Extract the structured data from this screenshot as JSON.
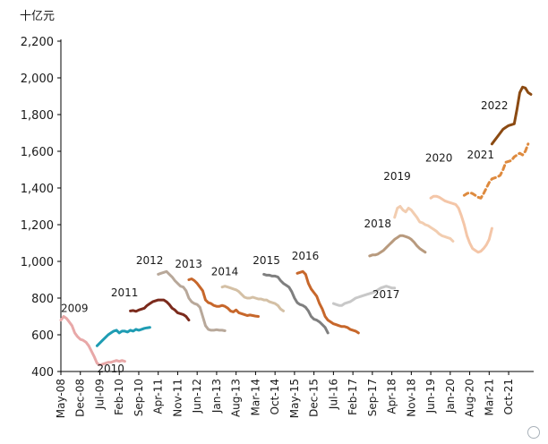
{
  "chart_data": {
    "type": "line",
    "unit": "十亿元",
    "ylim": [
      400,
      2200
    ],
    "yticks": [
      "400",
      "600",
      "800",
      "1,000",
      "1,200",
      "1,400",
      "1,600",
      "1,800",
      "2,000",
      "2,200"
    ],
    "xticks": [
      "May-08",
      "Dec-08",
      "Jul-09",
      "Feb-10",
      "Sep-10",
      "Apr-11",
      "Nov-11",
      "Jun-12",
      "Jan-13",
      "Aug-13",
      "Mar-14",
      "Oct-14",
      "May-15",
      "Dec-15",
      "Jul-16",
      "Feb-17",
      "Sep-17",
      "Apr-18",
      "Nov-18",
      "Jun-19",
      "Jan-20",
      "Aug-20",
      "Mar-21",
      "Oct-21"
    ],
    "grid": false,
    "series": [
      {
        "name": "2009",
        "color": "#e8a8a8",
        "style": "solid",
        "x": [
          "2008-05",
          "2008-06",
          "2008-07",
          "2008-08",
          "2008-09",
          "2008-10",
          "2008-11",
          "2008-12",
          "2009-01",
          "2009-02",
          "2009-03",
          "2009-04",
          "2009-05",
          "2009-06",
          "2009-07",
          "2009-08",
          "2009-09",
          "2009-10",
          "2009-11",
          "2009-12",
          "2010-01",
          "2010-02",
          "2010-03",
          "2010-04"
        ],
        "values": [
          680,
          700,
          690,
          670,
          650,
          610,
          590,
          575,
          570,
          560,
          540,
          510,
          480,
          445,
          435,
          440,
          445,
          450,
          450,
          455,
          460,
          455,
          460,
          455
        ]
      },
      {
        "name": "2010",
        "color": "#1e9cb3",
        "style": "solid",
        "x": [
          "2009-06",
          "2009-07",
          "2009-08",
          "2009-09",
          "2009-10",
          "2009-11",
          "2009-12",
          "2010-01",
          "2010-02",
          "2010-03",
          "2010-04",
          "2010-05",
          "2010-06",
          "2010-07",
          "2010-08",
          "2010-09",
          "2010-10",
          "2010-11",
          "2010-12",
          "2011-01"
        ],
        "values": [
          540,
          555,
          570,
          585,
          600,
          610,
          620,
          625,
          610,
          620,
          620,
          615,
          625,
          620,
          630,
          625,
          630,
          635,
          638,
          640
        ]
      },
      {
        "name": "2011",
        "color": "#7b2a1c",
        "style": "solid",
        "x": [
          "2010-06",
          "2010-07",
          "2010-08",
          "2010-09",
          "2010-10",
          "2010-11",
          "2010-12",
          "2011-01",
          "2011-02",
          "2011-03",
          "2011-04",
          "2011-05",
          "2011-06",
          "2011-07",
          "2011-08",
          "2011-09",
          "2011-10",
          "2011-11",
          "2011-12",
          "2012-01",
          "2012-02",
          "2012-03"
        ],
        "values": [
          730,
          732,
          728,
          735,
          740,
          745,
          760,
          770,
          780,
          785,
          790,
          790,
          790,
          780,
          765,
          745,
          735,
          720,
          715,
          710,
          700,
          680
        ]
      },
      {
        "name": "2012",
        "color": "#b8a89a",
        "style": "solid",
        "x": [
          "2011-04",
          "2011-05",
          "2011-06",
          "2011-07",
          "2011-08",
          "2011-09",
          "2011-10",
          "2011-11",
          "2011-12",
          "2012-01",
          "2012-02",
          "2012-03",
          "2012-04",
          "2012-05",
          "2012-06",
          "2012-07",
          "2012-08",
          "2012-09",
          "2012-10",
          "2012-11",
          "2012-12",
          "2013-01",
          "2013-02",
          "2013-03",
          "2013-04"
        ],
        "values": [
          930,
          935,
          940,
          945,
          930,
          915,
          895,
          880,
          865,
          860,
          840,
          800,
          780,
          770,
          765,
          750,
          700,
          650,
          630,
          625,
          625,
          628,
          625,
          625,
          622
        ]
      },
      {
        "name": "2013",
        "color": "#c7672b",
        "style": "solid",
        "x": [
          "2012-03",
          "2012-04",
          "2012-05",
          "2012-06",
          "2012-07",
          "2012-08",
          "2012-09",
          "2012-10",
          "2012-11",
          "2012-12",
          "2013-01",
          "2013-02",
          "2013-03",
          "2013-04",
          "2013-05",
          "2013-06",
          "2013-07",
          "2013-08",
          "2013-09",
          "2013-10",
          "2013-11",
          "2013-12",
          "2014-01",
          "2014-02",
          "2014-03",
          "2014-04"
        ],
        "values": [
          900,
          905,
          895,
          880,
          860,
          840,
          790,
          775,
          770,
          760,
          755,
          755,
          760,
          755,
          745,
          730,
          725,
          735,
          720,
          715,
          710,
          705,
          708,
          705,
          702,
          700
        ]
      },
      {
        "name": "2014",
        "color": "#d4c0a5",
        "style": "solid",
        "x": [
          "2013-03",
          "2013-04",
          "2013-05",
          "2013-06",
          "2013-07",
          "2013-08",
          "2013-09",
          "2013-10",
          "2013-11",
          "2013-12",
          "2014-01",
          "2014-02",
          "2014-03",
          "2014-04",
          "2014-05",
          "2014-06",
          "2014-07",
          "2014-08",
          "2014-09",
          "2014-10",
          "2014-11",
          "2014-12",
          "2015-01"
        ],
        "values": [
          860,
          865,
          860,
          855,
          850,
          845,
          835,
          820,
          805,
          800,
          800,
          805,
          800,
          795,
          795,
          790,
          790,
          780,
          775,
          770,
          760,
          740,
          730
        ]
      },
      {
        "name": "2015",
        "color": "#7f7f7f",
        "style": "solid",
        "x": [
          "2014-06",
          "2014-07",
          "2014-08",
          "2014-09",
          "2014-10",
          "2014-11",
          "2014-12",
          "2015-01",
          "2015-02",
          "2015-03",
          "2015-04",
          "2015-05",
          "2015-06",
          "2015-07",
          "2015-08",
          "2015-09",
          "2015-10",
          "2015-11",
          "2015-12",
          "2016-01",
          "2016-02",
          "2016-03",
          "2016-04",
          "2016-05"
        ],
        "values": [
          930,
          925,
          925,
          920,
          920,
          915,
          895,
          880,
          870,
          860,
          835,
          800,
          775,
          765,
          760,
          750,
          730,
          700,
          685,
          680,
          670,
          655,
          640,
          610
        ]
      },
      {
        "name": "2016",
        "color": "#c7672b",
        "style": "solid",
        "x": [
          "2015-06",
          "2015-07",
          "2015-08",
          "2015-09",
          "2015-10",
          "2015-11",
          "2015-12",
          "2016-01",
          "2016-02",
          "2016-03",
          "2016-04",
          "2016-05",
          "2016-06",
          "2016-07",
          "2016-08",
          "2016-09",
          "2016-10",
          "2016-11",
          "2016-12",
          "2017-01",
          "2017-02",
          "2017-03",
          "2017-04"
        ],
        "values": [
          935,
          940,
          945,
          930,
          880,
          850,
          830,
          810,
          770,
          740,
          700,
          680,
          670,
          660,
          655,
          650,
          645,
          645,
          640,
          630,
          625,
          620,
          610
        ]
      },
      {
        "name": "2017",
        "color": "#c8c8c8",
        "style": "solid",
        "x": [
          "2016-07",
          "2016-08",
          "2016-09",
          "2016-10",
          "2016-11",
          "2016-12",
          "2017-01",
          "2017-02",
          "2017-03",
          "2017-04",
          "2017-05",
          "2017-06",
          "2017-07",
          "2017-08",
          "2017-09",
          "2017-10",
          "2017-11",
          "2017-12",
          "2018-01",
          "2018-02",
          "2018-03",
          "2018-04",
          "2018-05"
        ],
        "values": [
          770,
          765,
          760,
          760,
          770,
          775,
          780,
          790,
          800,
          805,
          810,
          815,
          820,
          825,
          830,
          835,
          845,
          855,
          860,
          865,
          860,
          855,
          855
        ]
      },
      {
        "name": "2018",
        "color": "#b89a7e",
        "style": "solid",
        "x": [
          "2017-08",
          "2017-09",
          "2017-10",
          "2017-11",
          "2017-12",
          "2018-01",
          "2018-02",
          "2018-03",
          "2018-04",
          "2018-05",
          "2018-06",
          "2018-07",
          "2018-08",
          "2018-09",
          "2018-10",
          "2018-11",
          "2018-12",
          "2019-01",
          "2019-02",
          "2019-03",
          "2019-04"
        ],
        "values": [
          1030,
          1035,
          1035,
          1040,
          1050,
          1060,
          1075,
          1090,
          1105,
          1120,
          1130,
          1140,
          1140,
          1135,
          1130,
          1120,
          1105,
          1085,
          1070,
          1060,
          1050
        ]
      },
      {
        "name": "2019",
        "color": "#f2cdb0",
        "style": "solid",
        "x": [
          "2018-05",
          "2018-06",
          "2018-07",
          "2018-08",
          "2018-09",
          "2018-10",
          "2018-11",
          "2018-12",
          "2019-01",
          "2019-02",
          "2019-03",
          "2019-04",
          "2019-05",
          "2019-06",
          "2019-07",
          "2019-08",
          "2019-09",
          "2019-10",
          "2019-11",
          "2019-12",
          "2020-01",
          "2020-02"
        ],
        "values": [
          1240,
          1290,
          1300,
          1280,
          1270,
          1290,
          1280,
          1260,
          1240,
          1215,
          1210,
          1200,
          1195,
          1185,
          1175,
          1165,
          1150,
          1140,
          1135,
          1130,
          1125,
          1110
        ]
      },
      {
        "name": "2020",
        "color": "#f4c6a8",
        "style": "solid",
        "x": [
          "2019-06",
          "2019-07",
          "2019-08",
          "2019-09",
          "2019-10",
          "2019-11",
          "2019-12",
          "2020-01",
          "2020-02",
          "2020-03",
          "2020-04",
          "2020-05",
          "2020-06",
          "2020-07",
          "2020-08",
          "2020-09",
          "2020-10",
          "2020-11",
          "2020-12",
          "2021-01",
          "2021-02",
          "2021-03",
          "2021-04"
        ],
        "values": [
          1345,
          1355,
          1355,
          1350,
          1340,
          1330,
          1325,
          1320,
          1315,
          1310,
          1290,
          1250,
          1200,
          1140,
          1100,
          1070,
          1060,
          1050,
          1055,
          1070,
          1090,
          1120,
          1180
        ]
      },
      {
        "name": "2021",
        "color": "#de8a3e",
        "style": "dashed",
        "x": [
          "2020-06",
          "2020-07",
          "2020-08",
          "2020-09",
          "2020-10",
          "2020-11",
          "2020-12",
          "2021-01",
          "2021-02",
          "2021-03",
          "2021-04",
          "2021-05",
          "2021-06",
          "2021-07",
          "2021-08",
          "2021-09",
          "2021-10",
          "2021-11",
          "2021-12",
          "2022-01",
          "2022-02",
          "2022-03",
          "2022-04",
          "2022-05"
        ],
        "values": [
          1360,
          1370,
          1375,
          1370,
          1360,
          1350,
          1345,
          1370,
          1400,
          1430,
          1450,
          1455,
          1460,
          1470,
          1500,
          1540,
          1545,
          1550,
          1570,
          1580,
          1590,
          1580,
          1600,
          1640
        ]
      },
      {
        "name": "2022",
        "color": "#8b4a12",
        "style": "solid",
        "x": [
          "2021-04",
          "2021-05",
          "2021-06",
          "2021-07",
          "2021-08",
          "2021-09",
          "2021-10",
          "2021-11",
          "2021-12",
          "2022-01",
          "2022-02",
          "2022-03",
          "2022-04",
          "2022-05",
          "2022-06"
        ],
        "values": [
          1640,
          1660,
          1680,
          1700,
          1720,
          1730,
          1740,
          1745,
          1750,
          1830,
          1920,
          1950,
          1945,
          1920,
          1910
        ]
      }
    ]
  }
}
